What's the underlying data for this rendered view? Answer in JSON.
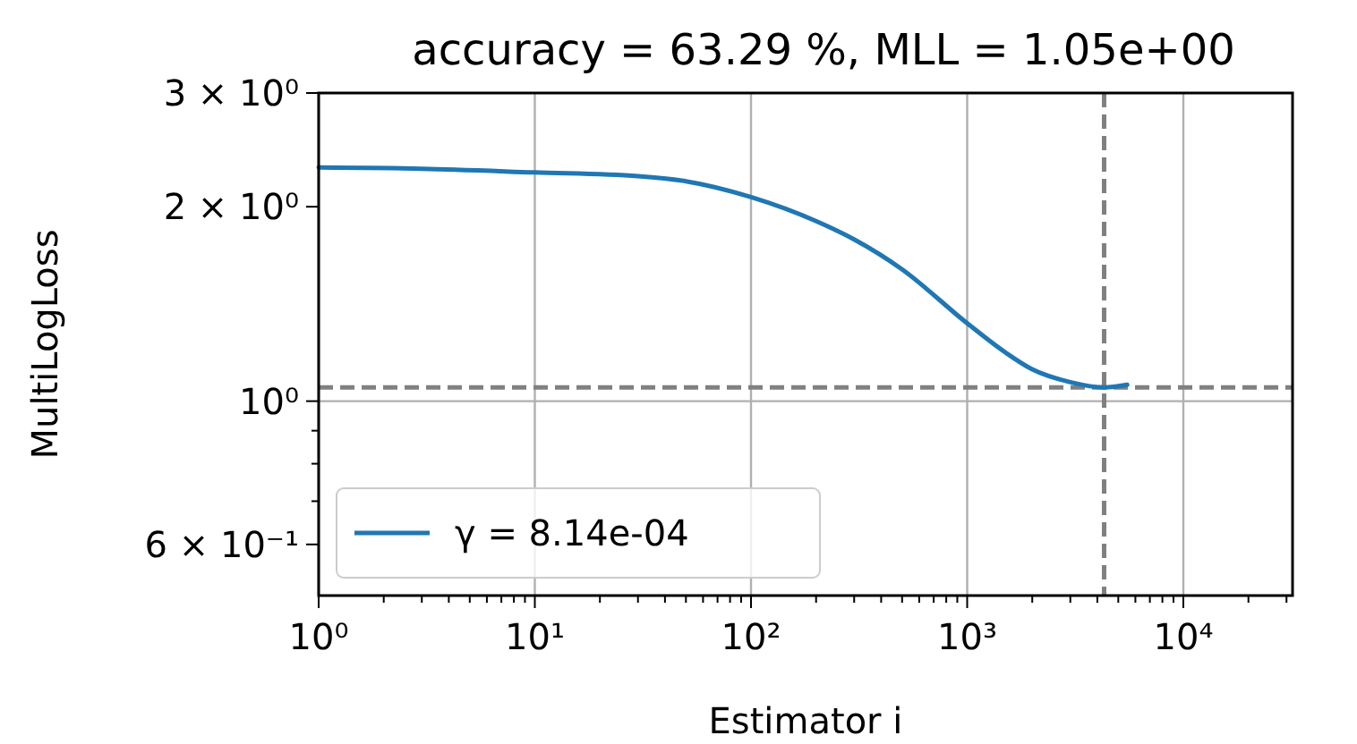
{
  "chart_data": {
    "type": "line",
    "title": "accuracy = 63.29 %, MLL = 1.05e+00",
    "xlabel": "Estimator i",
    "ylabel": "MultiLogLoss",
    "log": "xy",
    "grid": true,
    "legend": "bottom left",
    "line_style": "solid",
    "xlim": [
      1,
      32000
    ],
    "ylim": [
      0.5,
      3
    ],
    "xticks": [
      {
        "value": 1,
        "label": "10⁰"
      },
      {
        "value": 10,
        "label": "10¹"
      },
      {
        "value": 100,
        "label": "10²"
      },
      {
        "value": 1000,
        "label": "10³"
      },
      {
        "value": 10000,
        "label": "10⁴"
      },
      {
        "value": 2,
        "label": null
      },
      {
        "value": 3,
        "label": null
      },
      {
        "value": 4,
        "label": null
      },
      {
        "value": 5,
        "label": null
      },
      {
        "value": 6,
        "label": null
      },
      {
        "value": 7,
        "label": null
      },
      {
        "value": 8,
        "label": null
      },
      {
        "value": 9,
        "label": null
      },
      {
        "value": 20,
        "label": null
      },
      {
        "value": 30,
        "label": null
      },
      {
        "value": 40,
        "label": null
      },
      {
        "value": 50,
        "label": null
      },
      {
        "value": 60,
        "label": null
      },
      {
        "value": 70,
        "label": null
      },
      {
        "value": 80,
        "label": null
      },
      {
        "value": 90,
        "label": null
      },
      {
        "value": 200,
        "label": null
      },
      {
        "value": 300,
        "label": null
      },
      {
        "value": 400,
        "label": null
      },
      {
        "value": 500,
        "label": null
      },
      {
        "value": 600,
        "label": null
      },
      {
        "value": 700,
        "label": null
      },
      {
        "value": 800,
        "label": null
      },
      {
        "value": 900,
        "label": null
      },
      {
        "value": 2000,
        "label": null
      },
      {
        "value": 3000,
        "label": null
      },
      {
        "value": 4000,
        "label": null
      },
      {
        "value": 5000,
        "label": null
      },
      {
        "value": 6000,
        "label": null
      },
      {
        "value": 7000,
        "label": null
      },
      {
        "value": 8000,
        "label": null
      },
      {
        "value": 9000,
        "label": null
      },
      {
        "value": 20000,
        "label": null
      },
      {
        "value": 30000,
        "label": null
      }
    ],
    "yticks": [
      {
        "value": 0.6,
        "label": "6 × 10⁻¹"
      },
      {
        "value": 0.7,
        "label": null
      },
      {
        "value": 0.8,
        "label": null
      },
      {
        "value": 0.9,
        "label": null
      },
      {
        "value": 1,
        "label": "10⁰"
      },
      {
        "value": 2,
        "label": "2 × 10⁰"
      },
      {
        "value": 3,
        "label": "3 × 10⁰"
      }
    ],
    "ref_lines": [
      {
        "axis": "y",
        "value": 1.05,
        "color": "#808080",
        "line_style": "dashed"
      },
      {
        "axis": "x",
        "value": 4300,
        "color": "#808080",
        "line_style": "dashed"
      }
    ],
    "series": [
      {
        "name": "γ = 8.14e-04",
        "color": "#1f77b4",
        "x": [
          1,
          3,
          10,
          30,
          50,
          100,
          200,
          300,
          500,
          1000,
          1500,
          2000,
          3000,
          4300,
          5500
        ],
        "values": [
          2.3,
          2.29,
          2.26,
          2.23,
          2.19,
          2.07,
          1.9,
          1.78,
          1.6,
          1.32,
          1.19,
          1.12,
          1.07,
          1.05,
          1.06
        ]
      }
    ]
  }
}
